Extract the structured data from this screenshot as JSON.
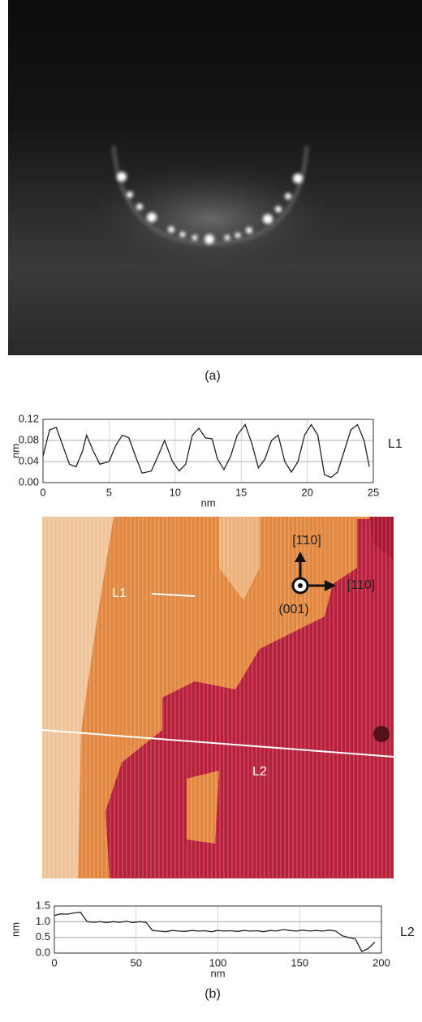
{
  "figure": {
    "panel_a": "(a)",
    "panel_b": "(b)",
    "side_label_1": "L1",
    "side_label_2": "L2",
    "image_labels": {
      "line_1": "L1",
      "line_2": "L2",
      "dir_up": "[1̄10]",
      "dir_right": "[110]",
      "normal": "(001)"
    }
  },
  "chart_data": [
    {
      "type": "line",
      "xlabel": "nm",
      "ylabel": "nm",
      "x": [
        0,
        0.5,
        1,
        1.5,
        2,
        2.5,
        3,
        3.3,
        3.8,
        4.3,
        5,
        5.5,
        6,
        6.5,
        7,
        7.5,
        8.2,
        8.7,
        9.2,
        9.8,
        10.3,
        10.8,
        11.3,
        11.8,
        12.3,
        12.8,
        13.2,
        13.7,
        14.2,
        14.7,
        15.3,
        15.8,
        16.3,
        16.8,
        17.3,
        17.8,
        18.3,
        18.8,
        19.3,
        19.8,
        20.3,
        20.8,
        21.3,
        21.8,
        22.3,
        22.8,
        23.3,
        23.8,
        24.3,
        24.7
      ],
      "values": [
        0.05,
        0.1,
        0.105,
        0.07,
        0.035,
        0.03,
        0.06,
        0.09,
        0.06,
        0.035,
        0.04,
        0.07,
        0.09,
        0.085,
        0.05,
        0.018,
        0.022,
        0.05,
        0.08,
        0.04,
        0.022,
        0.035,
        0.09,
        0.103,
        0.085,
        0.083,
        0.045,
        0.025,
        0.05,
        0.09,
        0.11,
        0.075,
        0.028,
        0.045,
        0.08,
        0.09,
        0.04,
        0.02,
        0.04,
        0.09,
        0.11,
        0.09,
        0.015,
        0.01,
        0.02,
        0.06,
        0.1,
        0.11,
        0.08,
        0.03
      ],
      "color": "#222222",
      "xlim": [
        0,
        25
      ],
      "ylim": [
        0,
        0.12
      ],
      "xticks": [
        0,
        5,
        10,
        15,
        20,
        25
      ],
      "yticks": [
        {
          "value": 0,
          "label": "0.00"
        },
        0.04,
        0.08,
        0.12
      ],
      "grid": true
    },
    {
      "type": "line",
      "xlabel": "nm",
      "ylabel": "nm",
      "x": [
        0,
        4,
        8,
        12,
        16,
        20,
        24,
        28,
        32,
        36,
        40,
        44,
        48,
        52,
        56,
        60,
        64,
        68,
        72,
        76,
        80,
        84,
        88,
        92,
        96,
        100,
        104,
        108,
        112,
        116,
        120,
        124,
        128,
        132,
        136,
        140,
        144,
        148,
        152,
        156,
        160,
        164,
        168,
        172,
        176,
        180,
        184,
        188,
        192,
        196
      ],
      "values": [
        1.2,
        1.25,
        1.24,
        1.28,
        1.3,
        1.0,
        0.98,
        1.0,
        0.97,
        1.0,
        0.98,
        1.01,
        0.97,
        1.0,
        0.98,
        0.72,
        0.7,
        0.68,
        0.72,
        0.7,
        0.69,
        0.72,
        0.7,
        0.71,
        0.68,
        0.72,
        0.7,
        0.71,
        0.69,
        0.72,
        0.7,
        0.71,
        0.68,
        0.72,
        0.7,
        0.75,
        0.72,
        0.7,
        0.73,
        0.7,
        0.72,
        0.7,
        0.73,
        0.7,
        0.55,
        0.5,
        0.45,
        0.05,
        0.15,
        0.35
      ],
      "color": "#222222",
      "xlim": [
        0,
        200
      ],
      "ylim": [
        0,
        1.5
      ],
      "xticks": [
        0,
        50,
        100,
        150,
        200
      ],
      "yticks": [
        {
          "value": 0,
          "label": "0.0"
        },
        0.5,
        {
          "value": 1,
          "label": "1.0"
        },
        1.5
      ],
      "grid": true
    }
  ]
}
